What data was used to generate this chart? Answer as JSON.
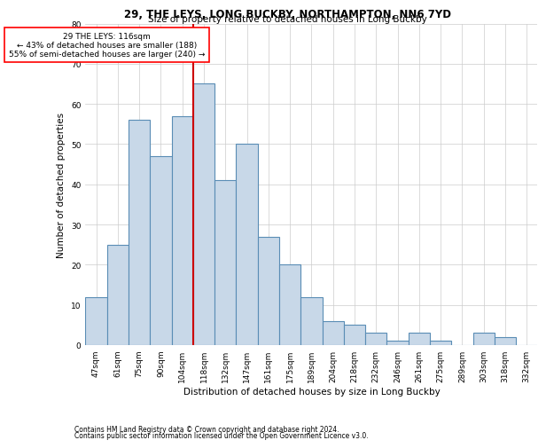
{
  "title1": "29, THE LEYS, LONG BUCKBY, NORTHAMPTON, NN6 7YD",
  "title2": "Size of property relative to detached houses in Long Buckby",
  "xlabel": "Distribution of detached houses by size in Long Buckby",
  "ylabel": "Number of detached properties",
  "footnote1": "Contains HM Land Registry data © Crown copyright and database right 2024.",
  "footnote2": "Contains public sector information licensed under the Open Government Licence v3.0.",
  "annotation_line1": "29 THE LEYS: 116sqm",
  "annotation_line2": "← 43% of detached houses are smaller (188)",
  "annotation_line3": "55% of semi-detached houses are larger (240) →",
  "bar_color": "#c8d8e8",
  "bar_edge_color": "#5a8db5",
  "marker_line_color": "#cc0000",
  "categories": [
    "47sqm",
    "61sqm",
    "75sqm",
    "90sqm",
    "104sqm",
    "118sqm",
    "132sqm",
    "147sqm",
    "161sqm",
    "175sqm",
    "189sqm",
    "204sqm",
    "218sqm",
    "232sqm",
    "246sqm",
    "261sqm",
    "275sqm",
    "289sqm",
    "303sqm",
    "318sqm",
    "332sqm"
  ],
  "values": [
    12,
    25,
    56,
    47,
    57,
    65,
    41,
    50,
    27,
    20,
    12,
    6,
    5,
    3,
    1,
    3,
    1,
    0,
    3,
    2,
    0
  ],
  "marker_bin_index": 5,
  "ylim": [
    0,
    80
  ],
  "yticks": [
    0,
    10,
    20,
    30,
    40,
    50,
    60,
    70,
    80
  ],
  "bg_color": "#ffffff",
  "grid_color": "#cccccc",
  "title_fontsize": 8.5,
  "subtitle_fontsize": 7.5,
  "ylabel_fontsize": 7.5,
  "xlabel_fontsize": 7.5,
  "tick_fontsize": 6.5,
  "annotation_fontsize": 6.5,
  "footnote_fontsize": 5.5
}
